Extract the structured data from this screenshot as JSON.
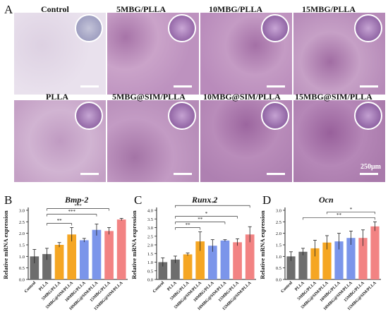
{
  "panels": {
    "a": "A",
    "b": "B",
    "c": "C",
    "d": "D"
  },
  "micrographs": [
    {
      "title": "Control"
    },
    {
      "title": "5MBG/PLLA"
    },
    {
      "title": "10MBG/PLLA"
    },
    {
      "title": "15MBG/PLLA"
    },
    {
      "title": "PLLA"
    },
    {
      "title": "5MBG@SIM/PLLA"
    },
    {
      "title": "10MBG@SIM/PLLA"
    },
    {
      "title": "15MBG@SIM/PLLA"
    }
  ],
  "scale_label": "250μm",
  "colors": {
    "series": [
      "#6d6d6d",
      "#6d6d6d",
      "#f5a623",
      "#f5a623",
      "#7b95ea",
      "#7b95ea",
      "#f28383",
      "#f28383"
    ],
    "micro_control": "#e7deea",
    "micro_stain": "#b78ab9"
  },
  "chart_data": [
    {
      "type": "bar",
      "title": "Bmp-2",
      "ylabel": "Relative mRNA expression",
      "categories": [
        "Control",
        "PLLA",
        "5MBG/PLLA",
        "5MBG@SIM/PLLA",
        "10MBG/PLLA",
        "10MBG@SIM/PLLA",
        "15MBG/PLLA",
        "15MBG@SIM/PLLA"
      ],
      "values": [
        1.0,
        1.1,
        1.5,
        1.95,
        1.7,
        2.15,
        2.1,
        2.6
      ],
      "errors": [
        0.3,
        0.25,
        0.1,
        0.3,
        0.08,
        0.25,
        0.15,
        0.05
      ],
      "ylim": [
        0,
        3.0
      ],
      "yticks": [
        "0.0",
        "0.5",
        "1.0",
        "1.5",
        "2.0",
        "2.5",
        "3.0"
      ],
      "significance": [
        {
          "from": 1,
          "to": 3,
          "label": "**"
        },
        {
          "from": 1,
          "to": 5,
          "label": "***"
        },
        {
          "from": 1,
          "to": 6,
          "label": "***"
        },
        {
          "from": 1,
          "to": 7,
          "label": "*"
        },
        {
          "from": 0,
          "to": 7,
          "label": "***"
        }
      ]
    },
    {
      "type": "bar",
      "title": "Runx 2",
      "ylabel": "Relative mRNA expression",
      "categories": [
        "Control",
        "PLLA",
        "5MBG/PLLA",
        "5MBG@SIM/PLLA",
        "10MBG/PLLA",
        "10MBG@SIM/PLLA",
        "15MBG/PLLA",
        "15MBG@SIM/PLLA"
      ],
      "values": [
        1.0,
        1.15,
        1.45,
        2.2,
        1.95,
        2.25,
        2.15,
        2.6
      ],
      "errors": [
        0.25,
        0.2,
        0.08,
        0.55,
        0.35,
        0.05,
        0.2,
        0.45
      ],
      "ylim": [
        0,
        4.0
      ],
      "yticks": [
        "0.0",
        "0.5",
        "1.0",
        "1.5",
        "2.0",
        "2.5",
        "3.0",
        "3.5",
        "4.0"
      ],
      "significance": [
        {
          "from": 1,
          "to": 3,
          "label": "**"
        },
        {
          "from": 1,
          "to": 5,
          "label": "**"
        },
        {
          "from": 1,
          "to": 6,
          "label": "*"
        },
        {
          "from": 1,
          "to": 7,
          "label": "***"
        }
      ]
    },
    {
      "type": "bar",
      "title": "Ocn",
      "ylabel": "Relative mRNA expression",
      "categories": [
        "Control",
        "PLLA",
        "5MBG/PLLA",
        "5MBG@SIM/PLLA",
        "10MBG/PLLA",
        "10MBG@SIM/PLLA",
        "15MBG/PLLA",
        "15MBG@SIM/PLLA"
      ],
      "values": [
        1.0,
        1.2,
        1.35,
        1.6,
        1.65,
        1.8,
        1.8,
        2.3
      ],
      "errors": [
        0.2,
        0.15,
        0.35,
        0.3,
        0.35,
        0.3,
        0.35,
        0.2
      ],
      "ylim": [
        0,
        3.0
      ],
      "yticks": [
        "0.0",
        "0.5",
        "1.0",
        "1.5",
        "2.0",
        "2.5",
        "3.0"
      ],
      "significance": [
        {
          "from": 1,
          "to": 7,
          "label": "**"
        },
        {
          "from": 3,
          "to": 7,
          "label": "*"
        }
      ]
    }
  ]
}
